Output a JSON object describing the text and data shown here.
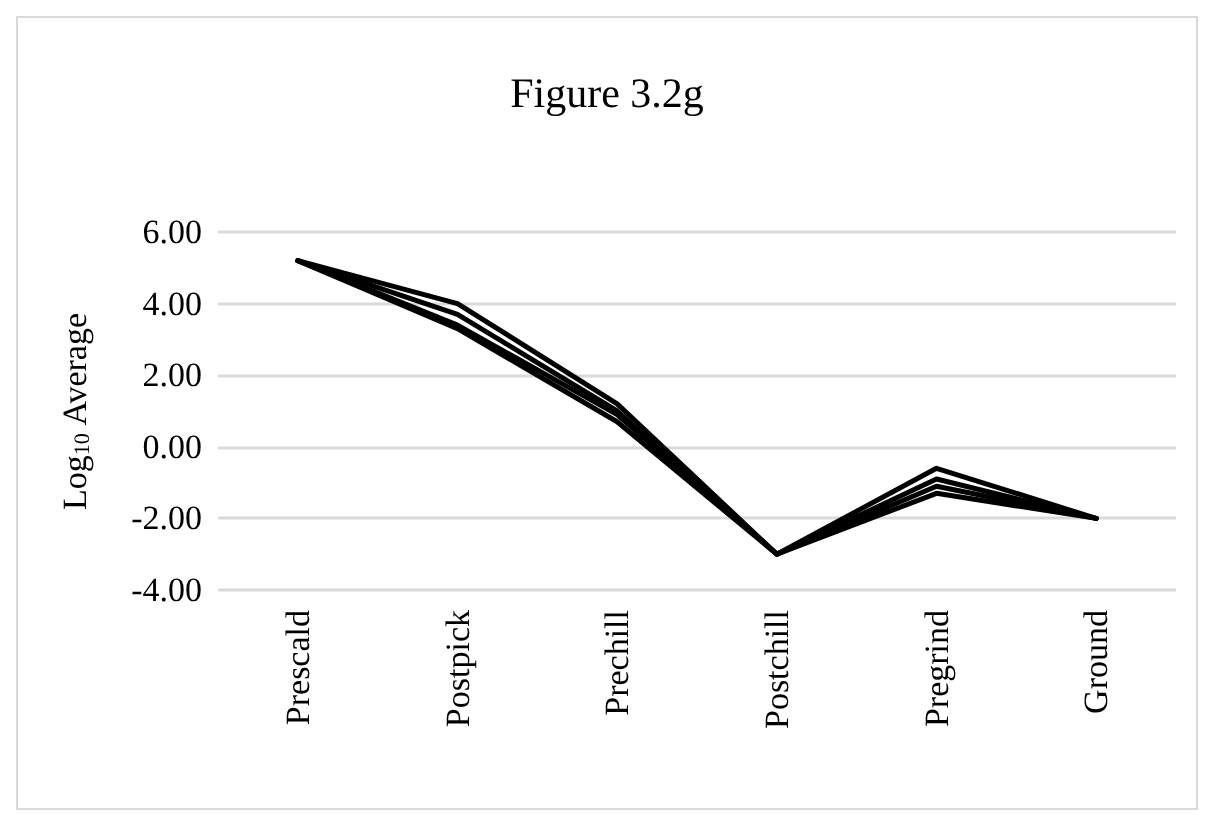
{
  "chart_data": {
    "type": "line",
    "title": "Figure 3.2g",
    "ylabel": "Log$_{10}$ Average",
    "categories": [
      "Prescald",
      "Postpick",
      "Prechill",
      "Postchill",
      "Pregrind",
      "Ground"
    ],
    "series": [
      {
        "color": "#000000",
        "values": [
          5.2,
          4.0,
          1.2,
          -3.0,
          -0.6,
          -2.0
        ]
      },
      {
        "color": "#000000",
        "values": [
          5.2,
          3.7,
          1.0,
          -3.0,
          -0.9,
          -2.0
        ]
      },
      {
        "color": "#000000",
        "values": [
          5.2,
          3.4,
          0.9,
          -3.0,
          -1.1,
          -2.0
        ]
      },
      {
        "color": "#000000",
        "values": [
          5.2,
          3.3,
          0.7,
          -3.0,
          -1.3,
          -2.0
        ]
      }
    ],
    "ylim": [
      -4,
      6
    ],
    "yticks": [
      {
        "value": -4,
        "label": "-4.00"
      },
      {
        "value": -2,
        "label": "-2.00"
      },
      {
        "value": 0,
        "label": "0.00"
      },
      {
        "value": 2,
        "label": "2.00"
      },
      {
        "value": 4,
        "label": "4.00"
      },
      {
        "value": 6,
        "label": "6.00"
      }
    ],
    "grid": "y",
    "marker": "none",
    "line_style": "solid"
  }
}
